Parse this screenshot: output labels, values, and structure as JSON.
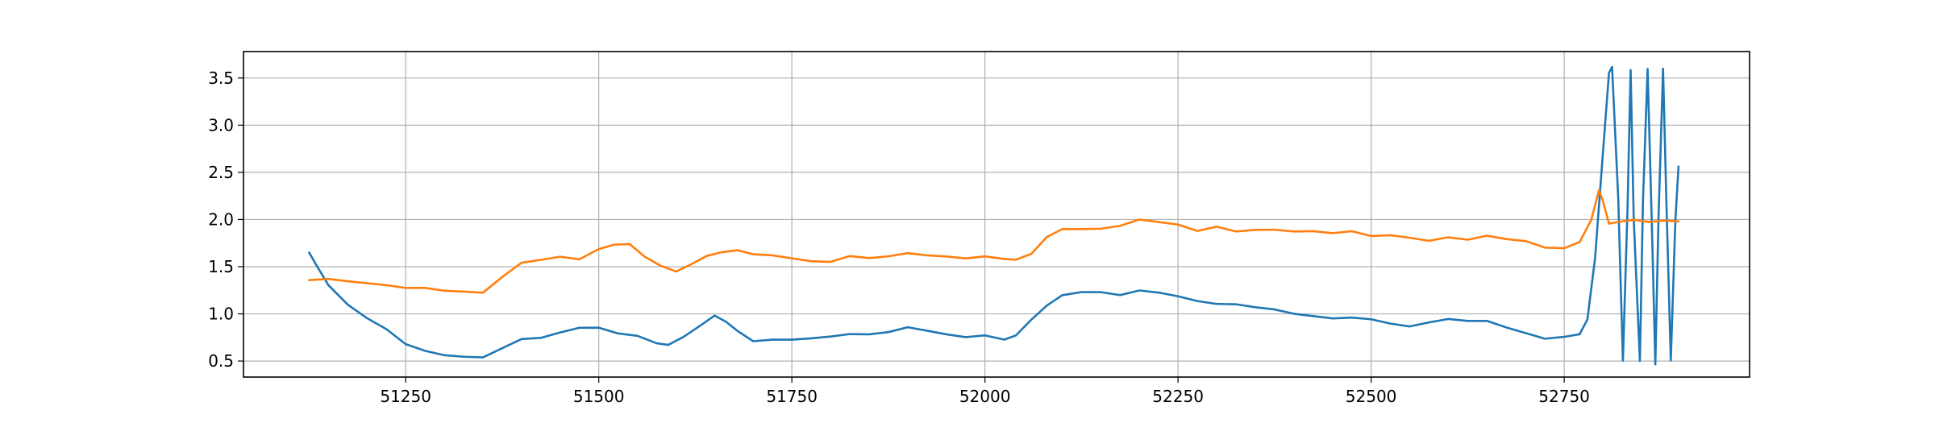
{
  "chart_data": {
    "type": "line",
    "title": "",
    "xlabel": "",
    "ylabel": "",
    "xlim": [
      51040,
      52990
    ],
    "ylim": [
      0.33,
      3.78
    ],
    "grid": true,
    "legend": "none",
    "x_ticks": [
      {
        "value": 51250,
        "label": "51250"
      },
      {
        "value": 51500,
        "label": "51500"
      },
      {
        "value": 51750,
        "label": "51750"
      },
      {
        "value": 52000,
        "label": "52000"
      },
      {
        "value": 52250,
        "label": "52250"
      },
      {
        "value": 52500,
        "label": "52500"
      },
      {
        "value": 52750,
        "label": "52750"
      }
    ],
    "y_ticks": [
      {
        "value": 0.5,
        "label": "0.5"
      },
      {
        "value": 1.0,
        "label": "1.0"
      },
      {
        "value": 1.5,
        "label": "1.5"
      },
      {
        "value": 2.0,
        "label": "2.0"
      },
      {
        "value": 2.5,
        "label": "2.5"
      },
      {
        "value": 3.0,
        "label": "3.0"
      },
      {
        "value": 3.5,
        "label": "3.5"
      }
    ],
    "series": [
      {
        "color": "#1f77b4",
        "x": [
          51125,
          51135,
          51150,
          51175,
          51200,
          51225,
          51250,
          51275,
          51300,
          51325,
          51350,
          51375,
          51400,
          51425,
          51450,
          51475,
          51500,
          51525,
          51550,
          51575,
          51590,
          51610,
          51630,
          51650,
          51665,
          51680,
          51700,
          51725,
          51750,
          51775,
          51800,
          51825,
          51850,
          51875,
          51900,
          51925,
          51950,
          51975,
          52000,
          52025,
          52040,
          52060,
          52080,
          52100,
          52125,
          52150,
          52175,
          52200,
          52225,
          52250,
          52275,
          52300,
          52325,
          52350,
          52375,
          52400,
          52425,
          52450,
          52475,
          52500,
          52525,
          52550,
          52575,
          52600,
          52625,
          52650,
          52675,
          52700,
          52725,
          52750,
          52770,
          52780,
          52790,
          52800,
          52808,
          52812,
          52820,
          52826,
          52832,
          52836,
          52840,
          52848,
          52852,
          52858,
          52864,
          52868,
          52872,
          52878,
          52882,
          52888,
          52894,
          52898
        ],
        "y": [
          1.65,
          1.5,
          1.3,
          1.08,
          0.95,
          0.82,
          0.68,
          0.6,
          0.57,
          0.55,
          0.55,
          0.65,
          0.74,
          0.76,
          0.8,
          0.86,
          0.84,
          0.79,
          0.75,
          0.68,
          0.66,
          0.75,
          0.87,
          0.98,
          0.93,
          0.82,
          0.73,
          0.73,
          0.74,
          0.74,
          0.76,
          0.78,
          0.77,
          0.8,
          0.84,
          0.82,
          0.77,
          0.76,
          0.77,
          0.74,
          0.78,
          0.95,
          1.1,
          1.2,
          1.24,
          1.22,
          1.2,
          1.23,
          1.22,
          1.17,
          1.13,
          1.1,
          1.1,
          1.08,
          1.05,
          1.02,
          0.98,
          0.97,
          0.96,
          0.95,
          0.89,
          0.86,
          0.9,
          0.93,
          0.92,
          0.91,
          0.86,
          0.79,
          0.75,
          0.76,
          0.8,
          0.95,
          1.6,
          2.7,
          3.55,
          3.62,
          2.2,
          0.5,
          2.1,
          3.58,
          2.0,
          0.5,
          2.2,
          3.6,
          1.8,
          0.47,
          2.0,
          3.6,
          2.3,
          0.5,
          2.0,
          2.55
        ]
      },
      {
        "color": "#ff7f0e",
        "x": [
          51125,
          51150,
          51175,
          51200,
          51225,
          51250,
          51275,
          51300,
          51325,
          51350,
          51375,
          51400,
          51425,
          51450,
          51475,
          51500,
          51520,
          51540,
          51560,
          51580,
          51600,
          51620,
          51640,
          51660,
          51680,
          51700,
          51725,
          51750,
          51775,
          51800,
          51825,
          51850,
          51875,
          51900,
          51925,
          51950,
          51975,
          52000,
          52025,
          52040,
          52060,
          52080,
          52100,
          52125,
          52150,
          52175,
          52200,
          52225,
          52250,
          52275,
          52300,
          52325,
          52350,
          52375,
          52400,
          52425,
          52450,
          52475,
          52500,
          52525,
          52550,
          52575,
          52600,
          52625,
          52650,
          52675,
          52700,
          52725,
          52750,
          52770,
          52785,
          52795,
          52800,
          52808,
          52820,
          52840,
          52860,
          52880,
          52898
        ],
        "y": [
          1.35,
          1.36,
          1.33,
          1.32,
          1.29,
          1.28,
          1.27,
          1.26,
          1.24,
          1.24,
          1.4,
          1.55,
          1.58,
          1.6,
          1.58,
          1.67,
          1.73,
          1.72,
          1.6,
          1.5,
          1.45,
          1.53,
          1.62,
          1.67,
          1.68,
          1.65,
          1.62,
          1.6,
          1.55,
          1.55,
          1.6,
          1.58,
          1.6,
          1.63,
          1.62,
          1.6,
          1.6,
          1.61,
          1.6,
          1.58,
          1.65,
          1.82,
          1.9,
          1.9,
          1.89,
          1.93,
          1.98,
          1.97,
          1.93,
          1.88,
          1.92,
          1.88,
          1.9,
          1.9,
          1.89,
          1.88,
          1.87,
          1.87,
          1.83,
          1.82,
          1.8,
          1.76,
          1.8,
          1.78,
          1.82,
          1.8,
          1.77,
          1.72,
          1.7,
          1.78,
          2.0,
          2.32,
          2.2,
          1.95,
          1.97,
          1.98,
          1.97,
          1.97,
          1.98
        ]
      }
    ]
  }
}
